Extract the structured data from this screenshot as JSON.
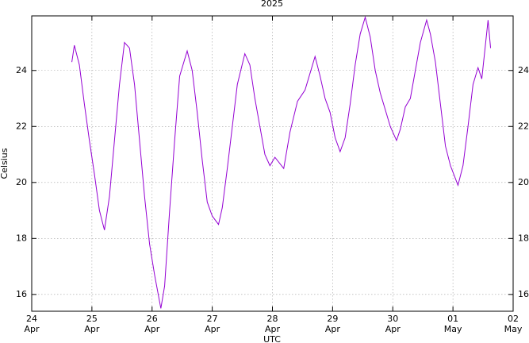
{
  "chart_data": {
    "type": "line",
    "title": "2025",
    "x_label": "UTC",
    "y_label": "Celsius",
    "color": "#9400d3",
    "grid": true,
    "xlim": [
      "2025-04-24T00:00",
      "2025-05-02T00:00"
    ],
    "xticks": [
      {
        "value": "2025-04-24T00:00",
        "label": "24 Apr"
      },
      {
        "value": "2025-04-25T00:00",
        "label": "25 Apr"
      },
      {
        "value": "2025-04-26T00:00",
        "label": "26 Apr"
      },
      {
        "value": "2025-04-27T00:00",
        "label": "27 Apr"
      },
      {
        "value": "2025-04-28T00:00",
        "label": "28 Apr"
      },
      {
        "value": "2025-04-29T00:00",
        "label": "29 Apr"
      },
      {
        "value": "2025-04-30T00:00",
        "label": "30 Apr"
      },
      {
        "value": "2025-05-01T00:00",
        "label": "01 May"
      },
      {
        "value": "2025-05-02T00:00",
        "label": "02 May"
      }
    ],
    "ylim": [
      15.4,
      25.95
    ],
    "yticks": [
      16,
      18,
      20,
      22,
      24
    ],
    "x": [
      "2025-04-24T16:00",
      "2025-04-24T17:00",
      "2025-04-24T19:00",
      "2025-04-24T21:00",
      "2025-04-24T23:00",
      "2025-04-25T01:00",
      "2025-04-25T03:00",
      "2025-04-25T05:00",
      "2025-04-25T07:00",
      "2025-04-25T09:00",
      "2025-04-25T11:00",
      "2025-04-25T13:00",
      "2025-04-25T15:00",
      "2025-04-25T17:00",
      "2025-04-25T19:00",
      "2025-04-25T21:00",
      "2025-04-25T23:00",
      "2025-04-26T01:00",
      "2025-04-26T03:30",
      "2025-04-26T05:00",
      "2025-04-26T07:00",
      "2025-04-26T09:00",
      "2025-04-26T11:00",
      "2025-04-26T14:00",
      "2025-04-26T16:00",
      "2025-04-26T18:00",
      "2025-04-26T20:00",
      "2025-04-26T22:00",
      "2025-04-27T00:00",
      "2025-04-27T02:30",
      "2025-04-27T04:00",
      "2025-04-27T06:00",
      "2025-04-27T08:00",
      "2025-04-27T10:00",
      "2025-04-27T13:00",
      "2025-04-27T15:00",
      "2025-04-27T17:00",
      "2025-04-27T19:00",
      "2025-04-27T21:00",
      "2025-04-27T23:00",
      "2025-04-28T01:00",
      "2025-04-28T04:30",
      "2025-04-28T07:00",
      "2025-04-28T10:00",
      "2025-04-28T13:00",
      "2025-04-28T17:00",
      "2025-04-28T19:00",
      "2025-04-28T21:00",
      "2025-04-28T23:00",
      "2025-04-29T01:00",
      "2025-04-29T03:00",
      "2025-04-29T05:00",
      "2025-04-29T07:00",
      "2025-04-29T09:00",
      "2025-04-29T11:00",
      "2025-04-29T13:00",
      "2025-04-29T15:00",
      "2025-04-29T17:00",
      "2025-04-29T19:00",
      "2025-04-29T21:00",
      "2025-04-29T23:00",
      "2025-04-30T01:30",
      "2025-04-30T03:00",
      "2025-04-30T05:00",
      "2025-04-30T07:00",
      "2025-04-30T09:00",
      "2025-04-30T11:00",
      "2025-04-30T13:30",
      "2025-04-30T15:00",
      "2025-04-30T17:00",
      "2025-04-30T19:00",
      "2025-04-30T21:00",
      "2025-04-30T23:00",
      "2025-05-01T02:00",
      "2025-05-01T04:00",
      "2025-05-01T06:00",
      "2025-05-01T08:00",
      "2025-05-01T10:00",
      "2025-05-01T11:30",
      "2025-05-01T14:00",
      "2025-05-01T15:00"
    ],
    "values": [
      24.3,
      24.9,
      24.2,
      22.8,
      21.5,
      20.3,
      19.0,
      18.3,
      19.5,
      21.5,
      23.5,
      25.0,
      24.8,
      23.5,
      21.5,
      19.5,
      17.8,
      16.7,
      15.5,
      16.3,
      19.0,
      21.5,
      23.8,
      24.7,
      24.0,
      22.5,
      20.8,
      19.3,
      18.8,
      18.5,
      19.1,
      20.5,
      22.0,
      23.5,
      24.6,
      24.2,
      23.0,
      22.0,
      21.0,
      20.6,
      20.9,
      20.5,
      21.8,
      22.9,
      23.3,
      24.5,
      23.8,
      23.0,
      22.5,
      21.6,
      21.1,
      21.6,
      22.8,
      24.2,
      25.3,
      25.9,
      25.2,
      24.0,
      23.2,
      22.6,
      22.0,
      21.5,
      21.9,
      22.7,
      23.0,
      24.0,
      25.0,
      25.8,
      25.3,
      24.3,
      22.8,
      21.3,
      20.6,
      19.9,
      20.6,
      22.0,
      23.5,
      24.1,
      23.7,
      25.8,
      24.8
    ]
  }
}
